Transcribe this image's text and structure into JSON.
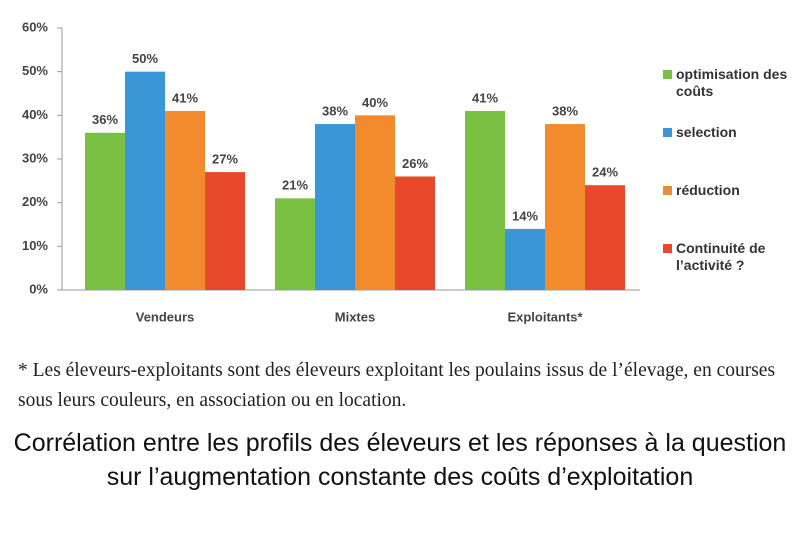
{
  "chart_data": {
    "type": "bar",
    "categories": [
      "Vendeurs",
      "Mixtes",
      "Exploitants*"
    ],
    "series": [
      {
        "name": "optimisation des coûts",
        "color": "#7ac143",
        "values": [
          36,
          21,
          41
        ],
        "value_labels": [
          "36%",
          "21%",
          "41%"
        ]
      },
      {
        "name": "selection",
        "color": "#3a96d6",
        "values": [
          50,
          38,
          14
        ],
        "value_labels": [
          "50%",
          "38%",
          "14%"
        ]
      },
      {
        "name": "réduction",
        "color": "#f28a2e",
        "values": [
          41,
          40,
          38
        ],
        "value_labels": [
          "41%",
          "40%",
          "38%"
        ]
      },
      {
        "name": "Continuité de l’activité ?",
        "color": "#e8492b",
        "values": [
          27,
          26,
          24
        ],
        "value_labels": [
          "27%",
          "26%",
          "24%"
        ]
      }
    ],
    "ylim": [
      0,
      60
    ],
    "yticks": [
      {
        "value": 0,
        "label": "0%"
      },
      {
        "value": 10,
        "label": "10%"
      },
      {
        "value": 20,
        "label": "20%"
      },
      {
        "value": 30,
        "label": "30%"
      },
      {
        "value": 40,
        "label": "40%"
      },
      {
        "value": 50,
        "label": "50%"
      },
      {
        "value": 60,
        "label": "60%"
      }
    ],
    "grid": false,
    "legend": "right",
    "footnote": "* Les éleveurs-exploitants sont des éleveurs exploitant les poulains issus de l’élevage, en courses sous leurs couleurs, en association ou en location.",
    "caption": "Corrélation entre les profils des éleveurs et les réponses à la question sur l’augmentation constante des coûts d’exploitation"
  }
}
